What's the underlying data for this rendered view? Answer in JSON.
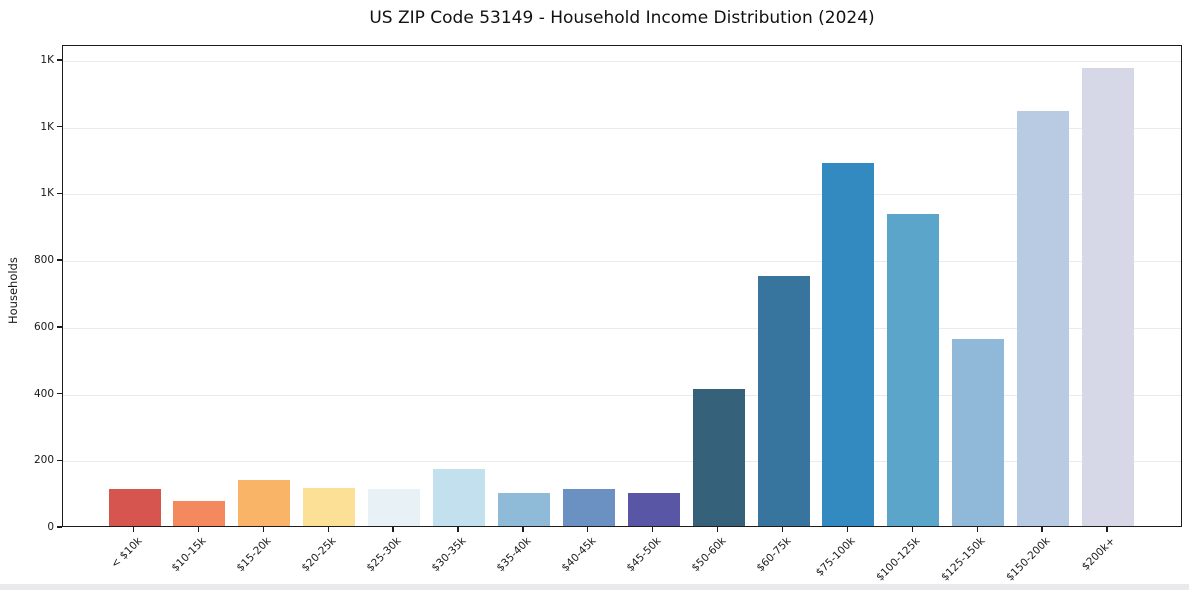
{
  "title": "US ZIP Code 53149 - Household Income Distribution (2024)",
  "chart_data": {
    "type": "bar",
    "title": "US ZIP Code 53149 - Household Income Distribution (2024)",
    "xlabel": "",
    "ylabel": "Households",
    "ylim": [
      0,
      1445
    ],
    "grid": "horizontal-light-gray",
    "legend": "none",
    "categories": [
      "< $10k",
      "$10-15k",
      "$15-20k",
      "$20-25k",
      "$25-30k",
      "$30-35k",
      "$35-40k",
      "$40-45k",
      "$45-50k",
      "$50-60k",
      "$60-75k",
      "$75-100k",
      "$100-125k",
      "$125-150k",
      "$150-200k",
      "$200k+"
    ],
    "values": [
      112,
      76,
      139,
      113,
      110,
      170,
      99,
      111,
      98,
      412,
      750,
      1089,
      936,
      560,
      1243,
      1373
    ],
    "bar_colors": [
      "#d6554f",
      "#f4885e",
      "#f9b468",
      "#fbe095",
      "#e7f1f6",
      "#c3e0ee",
      "#8fbbd8",
      "#6b91c3",
      "#5a56a6",
      "#35617b",
      "#37749e",
      "#338ac0",
      "#5ba4ca",
      "#8fb8d9",
      "#b9cbe3",
      "#d7d8e7"
    ],
    "y_ticks": [
      {
        "value": 0,
        "label": "0"
      },
      {
        "value": 200,
        "label": "200"
      },
      {
        "value": 400,
        "label": "400"
      },
      {
        "value": 600,
        "label": "600"
      },
      {
        "value": 800,
        "label": "800"
      },
      {
        "value": 1000,
        "label": "1K"
      },
      {
        "value": 1200,
        "label": "1K"
      },
      {
        "value": 1400,
        "label": "1K"
      }
    ]
  },
  "colors": {
    "background": "#ffffff",
    "spine": "#1c1c1c",
    "grid": "#ebebeb",
    "text": "#1a1a1a",
    "bottom_strip": "#eaeaed"
  }
}
